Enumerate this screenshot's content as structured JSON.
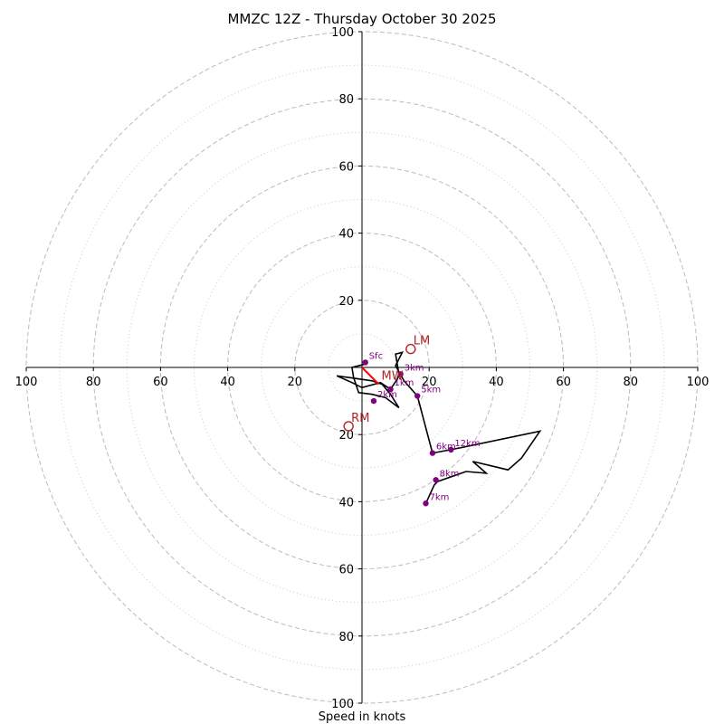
{
  "chart_data": {
    "type": "hodograph",
    "title": "MMZC 12Z - Thursday October 30 2025",
    "xlabel": "Speed in knots",
    "range": [
      -100,
      100
    ],
    "rings_major": [
      20,
      40,
      60,
      80,
      100
    ],
    "rings_minor": [
      10,
      30,
      50,
      70,
      90
    ],
    "x_tick_values": [
      -100,
      -80,
      -60,
      -40,
      -20,
      20,
      40,
      60,
      80,
      100
    ],
    "x_tick_labels": [
      "100",
      "80",
      "60",
      "40",
      "20",
      "20",
      "40",
      "60",
      "80",
      "100"
    ],
    "y_tick_values": [
      100,
      80,
      60,
      40,
      20,
      -20,
      -40,
      -60,
      -80,
      -100
    ],
    "y_tick_labels": [
      "100",
      "80",
      "60",
      "40",
      "20",
      "20",
      "40",
      "60",
      "80",
      "100"
    ],
    "hodograph_uv": [
      [
        1,
        1
      ],
      [
        -3,
        0
      ],
      [
        -2.5,
        -3
      ],
      [
        -1,
        -7.5
      ],
      [
        3,
        -8
      ],
      [
        7,
        -9
      ],
      [
        11,
        -12
      ],
      [
        8.5,
        -8
      ],
      [
        6,
        -5
      ],
      [
        3,
        -4
      ],
      [
        -4,
        -3
      ],
      [
        -7.5,
        -2.5
      ],
      [
        -3,
        -4.5
      ],
      [
        0,
        -6
      ],
      [
        5.5,
        -4.5
      ],
      [
        8.5,
        -6.5
      ],
      [
        10.5,
        -3.5
      ],
      [
        11,
        -2
      ],
      [
        10,
        4
      ],
      [
        12,
        4.5
      ],
      [
        10,
        0.5
      ],
      [
        12.5,
        -4
      ],
      [
        16.5,
        -8.5
      ],
      [
        21,
        -25.5
      ],
      [
        26.5,
        -24.5
      ],
      [
        53,
        -19
      ],
      [
        47.5,
        -27
      ],
      [
        43.5,
        -30.5
      ],
      [
        33,
        -28
      ],
      [
        37,
        -31.5
      ],
      [
        31,
        -31
      ],
      [
        22.5,
        -34
      ],
      [
        21.5,
        -35
      ],
      [
        19,
        -40.5
      ]
    ],
    "points": [
      {
        "label": "Sfc",
        "u": 1,
        "v": 1.5
      },
      {
        "label": "1km",
        "u": 8.5,
        "v": -6.5
      },
      {
        "label": "2km",
        "u": 3.5,
        "v": -10
      },
      {
        "label": "3km",
        "u": 11.5,
        "v": -2
      },
      {
        "label": "5km",
        "u": 16.5,
        "v": -8.5
      },
      {
        "label": "6km",
        "u": 21,
        "v": -25.5
      },
      {
        "label": "12km",
        "u": 26.5,
        "v": -24.5
      },
      {
        "label": "8km",
        "u": 22,
        "v": -33.5
      },
      {
        "label": "7km",
        "u": 19,
        "v": -40.5
      }
    ],
    "storm_motions": [
      {
        "label": "LM",
        "u": 14.5,
        "v": 5.5
      },
      {
        "label": "RM",
        "u": -4,
        "v": -17.5
      },
      {
        "label": "MW",
        "u": 5,
        "v": -5
      }
    ],
    "mean_wind_arrow": {
      "from_u": 0,
      "from_v": 0,
      "to_u": 5,
      "to_v": -5
    }
  }
}
